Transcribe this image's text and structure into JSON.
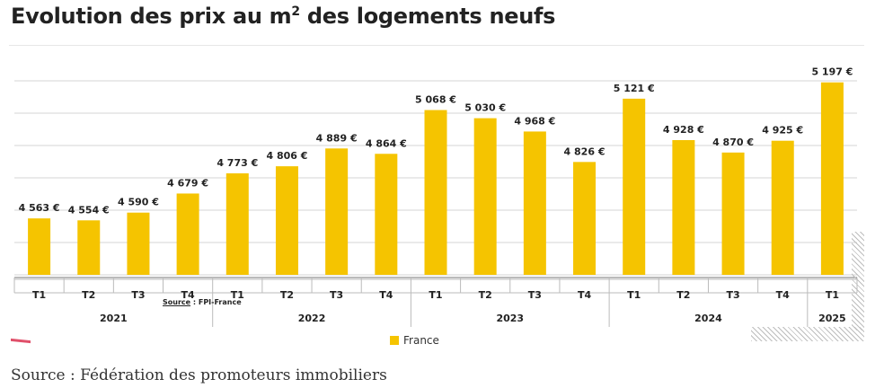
{
  "page": {
    "title_main": "Evolution des prix au m",
    "title_sup": "2",
    "title_rest": " des logements neufs",
    "footer_source": "Source : Fédération des promoteurs immobiliers"
  },
  "chart_data": {
    "type": "bar",
    "color": "#F5C400",
    "categories": [
      "T1",
      "T2",
      "T3",
      "T4",
      "T1",
      "T2",
      "T3",
      "T4",
      "T1",
      "T2",
      "T3",
      "T4",
      "T1",
      "T2",
      "T3",
      "T4",
      "T1"
    ],
    "years": [
      {
        "label": "2021",
        "count": 4
      },
      {
        "label": "2022",
        "count": 4
      },
      {
        "label": "2023",
        "count": 4
      },
      {
        "label": "2024",
        "count": 4
      },
      {
        "label": "2025",
        "count": 1
      }
    ],
    "series": [
      {
        "name": "France",
        "values": [
          4563,
          4554,
          4590,
          4679,
          4773,
          4806,
          4889,
          4864,
          5068,
          5030,
          4968,
          4826,
          5121,
          4928,
          4870,
          4925,
          5197
        ],
        "labels": [
          "4 563 €",
          "4 554 €",
          "4 590 €",
          "4 679 €",
          "4 773 €",
          "4 806 €",
          "4 889 €",
          "4 864 €",
          "5 068 €",
          "5 030 €",
          "4 968 €",
          "4 826 €",
          "5 121 €",
          "4 928 €",
          "4 870 €",
          "4 925 €",
          "5 197 €"
        ]
      }
    ],
    "ylim": [
      4300,
      5200
    ],
    "grid": true,
    "legend_position": "bottom",
    "source_label": "Source",
    "source_text": " : FPI-France"
  }
}
